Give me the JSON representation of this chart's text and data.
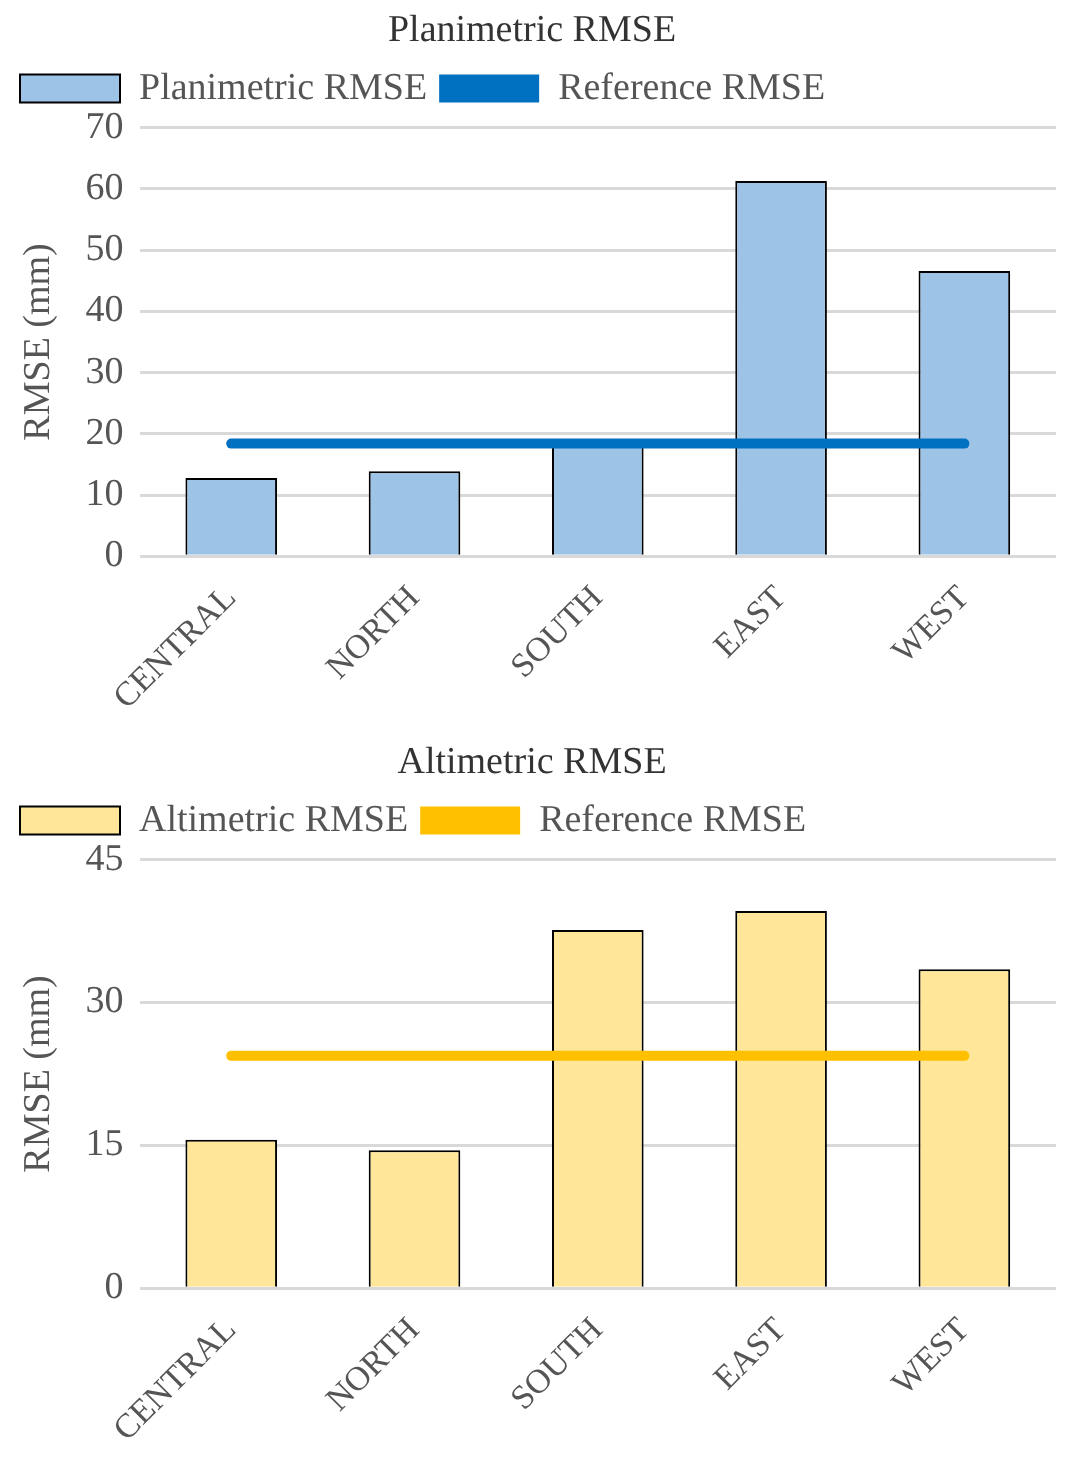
{
  "chart_data": [
    {
      "type": "bar",
      "title": "Planimetric RMSE",
      "ylabel": "RMSE (mm)",
      "categories": [
        "CENTRAL",
        "NORTH",
        "SOUTH",
        "EAST",
        "WEST"
      ],
      "series": [
        {
          "name": "Planimetric RMSE",
          "color": "#9dc3e6",
          "values": [
            12.8,
            13.9,
            18,
            61.3,
            46.6
          ]
        },
        {
          "type": "line",
          "name": "Reference RMSE",
          "color": "#0070c0",
          "values": [
            18.4,
            18.4,
            18.4,
            18.4,
            18.4
          ]
        }
      ],
      "ylim": [
        0,
        70
      ],
      "yticks": [
        0,
        10,
        20,
        30,
        40,
        50,
        60,
        70
      ],
      "grid": "y",
      "legend": "top left",
      "marker": "none"
    },
    {
      "type": "bar",
      "title": "Altimetric RMSE",
      "ylabel": "RMSE (mm)",
      "categories": [
        "CENTRAL",
        "NORTH",
        "SOUTH",
        "EAST",
        "WEST"
      ],
      "series": [
        {
          "name": "Altimetric RMSE",
          "color": "#ffe699",
          "values": [
            15.6,
            14.5,
            37.6,
            39.6,
            33.5
          ]
        },
        {
          "type": "line",
          "name": "Reference RMSE",
          "color": "#ffc000",
          "values": [
            24.4,
            24.4,
            24.4,
            24.4,
            24.4
          ]
        }
      ],
      "ylim": [
        0,
        45
      ],
      "yticks": [
        0,
        15,
        30,
        45
      ],
      "grid": "y",
      "legend": "top left",
      "marker": "none"
    }
  ]
}
